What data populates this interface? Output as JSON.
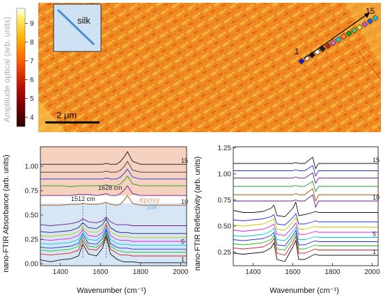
{
  "colorbar": {
    "label": "Amplitude  optical (arb. units)",
    "ticks": [
      "4",
      "5",
      "6",
      "7",
      "8",
      "9"
    ],
    "min": 3.5,
    "max": 9.8,
    "colors": [
      "#2a0000",
      "#7a0000",
      "#c01000",
      "#ff5a00",
      "#ffb200",
      "#fff06a",
      "#ffffff"
    ]
  },
  "map": {
    "inset_label": "silk",
    "scale_label": "2 μm",
    "point_start": "1",
    "point_end": "15",
    "point_colors": [
      "#1b1bd0",
      "#ffffff",
      "#111111",
      "#ffffff",
      "#222222",
      "#c02020",
      "#d070d0",
      "#30c0d0",
      "#ff8040",
      "#20a020",
      "#60c060",
      "#e0e050",
      "#d050d0",
      "#2060e0",
      "#30c0c0"
    ]
  },
  "chart_data": [
    {
      "type": "line",
      "title": "",
      "xlabel": "Wavenumber (cm⁻¹)",
      "ylabel": "nano-FTIR Absorbance (arb. units)",
      "xlim": [
        1300,
        2030
      ],
      "ylim": [
        -0.02,
        1.2
      ],
      "xticks": [
        1400,
        1600,
        1800,
        2000
      ],
      "yticks": [
        0.0,
        0.25,
        0.5,
        0.75,
        1.0
      ],
      "x": [
        1300,
        1350,
        1400,
        1450,
        1490,
        1512,
        1540,
        1580,
        1610,
        1628,
        1650,
        1680,
        1700,
        1720,
        1735,
        1760,
        1800,
        1900,
        2000,
        2030
      ],
      "regions": [
        {
          "name": "epoxy",
          "y_from": 0.7,
          "y_to": 1.2,
          "color": "#f5c9b5"
        },
        {
          "name": "silk",
          "y_from": -0.02,
          "y_to": 0.62,
          "color": "#cfe2f3"
        }
      ],
      "peak_labels": [
        "1512 cm",
        "1628 cm"
      ],
      "peak_positions": [
        1512,
        1628
      ],
      "series_end_labels": [
        "1",
        "5",
        "10",
        "15"
      ],
      "series": [
        {
          "color": "#111111",
          "values": [
            0.04,
            0.02,
            0.04,
            0.05,
            0.08,
            0.2,
            0.1,
            0.08,
            0.16,
            0.28,
            0.1,
            0.05,
            0.03,
            0.02,
            0.02,
            0.02,
            0.01,
            0.01,
            0.01,
            0.01
          ]
        },
        {
          "color": "#e02020",
          "values": [
            0.1,
            0.09,
            0.1,
            0.11,
            0.14,
            0.24,
            0.15,
            0.14,
            0.2,
            0.3,
            0.15,
            0.11,
            0.09,
            0.09,
            0.09,
            0.08,
            0.08,
            0.08,
            0.08,
            0.08
          ]
        },
        {
          "color": "#20c020",
          "values": [
            0.14,
            0.13,
            0.14,
            0.15,
            0.18,
            0.27,
            0.18,
            0.17,
            0.22,
            0.32,
            0.18,
            0.14,
            0.13,
            0.12,
            0.12,
            0.12,
            0.12,
            0.12,
            0.12,
            0.12
          ]
        },
        {
          "color": "#2030e0",
          "values": [
            0.17,
            0.16,
            0.17,
            0.18,
            0.21,
            0.3,
            0.21,
            0.2,
            0.26,
            0.35,
            0.21,
            0.17,
            0.16,
            0.16,
            0.16,
            0.15,
            0.15,
            0.15,
            0.15,
            0.15
          ]
        },
        {
          "color": "#00c8d8",
          "values": [
            0.21,
            0.2,
            0.21,
            0.22,
            0.25,
            0.32,
            0.25,
            0.24,
            0.29,
            0.37,
            0.25,
            0.21,
            0.2,
            0.2,
            0.2,
            0.19,
            0.19,
            0.19,
            0.19,
            0.19
          ]
        },
        {
          "color": "#e020e0",
          "values": [
            0.25,
            0.24,
            0.25,
            0.26,
            0.29,
            0.35,
            0.29,
            0.28,
            0.32,
            0.4,
            0.29,
            0.25,
            0.24,
            0.24,
            0.24,
            0.23,
            0.23,
            0.23,
            0.23,
            0.23
          ]
        },
        {
          "color": "#c8c800",
          "values": [
            0.29,
            0.28,
            0.29,
            0.3,
            0.33,
            0.38,
            0.33,
            0.32,
            0.36,
            0.42,
            0.33,
            0.29,
            0.28,
            0.28,
            0.28,
            0.27,
            0.27,
            0.27,
            0.27,
            0.27
          ]
        },
        {
          "color": "#1a1a80",
          "values": [
            0.33,
            0.32,
            0.33,
            0.34,
            0.37,
            0.42,
            0.37,
            0.36,
            0.4,
            0.46,
            0.37,
            0.33,
            0.32,
            0.32,
            0.32,
            0.31,
            0.31,
            0.31,
            0.31,
            0.31
          ]
        },
        {
          "color": "#6a1a8a",
          "values": [
            0.4,
            0.39,
            0.4,
            0.41,
            0.43,
            0.46,
            0.43,
            0.42,
            0.44,
            0.48,
            0.43,
            0.4,
            0.4,
            0.4,
            0.4,
            0.39,
            0.39,
            0.39,
            0.39,
            0.39
          ]
        },
        {
          "color": "#a05010",
          "values": [
            0.6,
            0.6,
            0.6,
            0.61,
            0.61,
            0.62,
            0.61,
            0.61,
            0.62,
            0.63,
            0.61,
            0.6,
            0.61,
            0.66,
            0.7,
            0.62,
            0.6,
            0.6,
            0.6,
            0.6
          ]
        },
        {
          "color": "#6a1a8a",
          "values": [
            0.7,
            0.7,
            0.7,
            0.7,
            0.71,
            0.71,
            0.71,
            0.7,
            0.71,
            0.72,
            0.7,
            0.7,
            0.72,
            0.76,
            0.8,
            0.72,
            0.7,
            0.7,
            0.7,
            0.7
          ]
        },
        {
          "color": "#20a020",
          "values": [
            0.8,
            0.8,
            0.8,
            0.79,
            0.8,
            0.8,
            0.8,
            0.8,
            0.8,
            0.81,
            0.8,
            0.8,
            0.82,
            0.86,
            0.9,
            0.82,
            0.8,
            0.8,
            0.8,
            0.8
          ]
        },
        {
          "color": "#2030e0",
          "values": [
            0.87,
            0.87,
            0.87,
            0.87,
            0.87,
            0.87,
            0.87,
            0.87,
            0.87,
            0.88,
            0.87,
            0.87,
            0.89,
            0.93,
            0.97,
            0.89,
            0.87,
            0.87,
            0.87,
            0.87
          ]
        },
        {
          "color": "#3a3a3a",
          "values": [
            0.94,
            0.94,
            0.94,
            0.94,
            0.94,
            0.94,
            0.94,
            0.94,
            0.94,
            0.95,
            0.94,
            0.94,
            0.96,
            1.0,
            1.05,
            0.96,
            0.94,
            0.94,
            0.94,
            0.94
          ]
        },
        {
          "color": "#111111",
          "values": [
            1.02,
            1.02,
            1.02,
            1.02,
            1.02,
            1.02,
            1.02,
            1.02,
            1.02,
            1.03,
            1.02,
            1.02,
            1.05,
            1.1,
            1.15,
            1.05,
            1.02,
            1.02,
            1.02,
            1.02
          ]
        }
      ]
    },
    {
      "type": "line",
      "title": "",
      "xlabel": "Wavenumber (cm⁻¹)",
      "ylabel": "nano-FTIR Reflectivity (arb. units)",
      "xlim": [
        1300,
        2030
      ],
      "ylim": [
        0.12,
        1.26
      ],
      "xticks": [
        1400,
        1600,
        1800,
        2000
      ],
      "yticks": [
        0.25,
        0.5,
        0.75,
        1.0,
        1.25
      ],
      "x": [
        1300,
        1350,
        1400,
        1450,
        1490,
        1505,
        1520,
        1560,
        1600,
        1615,
        1630,
        1660,
        1700,
        1715,
        1730,
        1760,
        1800,
        1900,
        2000,
        2030
      ],
      "series_end_labels": [
        "1",
        "5",
        "10",
        "15"
      ],
      "series": [
        {
          "color": "#111111",
          "values": [
            0.24,
            0.23,
            0.24,
            0.25,
            0.29,
            0.34,
            0.18,
            0.16,
            0.3,
            0.36,
            0.18,
            0.18,
            0.22,
            0.23,
            0.22,
            0.22,
            0.22,
            0.22,
            0.22,
            0.22
          ]
        },
        {
          "color": "#e02020",
          "values": [
            0.29,
            0.28,
            0.29,
            0.3,
            0.34,
            0.38,
            0.24,
            0.22,
            0.34,
            0.4,
            0.24,
            0.24,
            0.27,
            0.28,
            0.27,
            0.27,
            0.27,
            0.27,
            0.27,
            0.27
          ]
        },
        {
          "color": "#20c020",
          "values": [
            0.33,
            0.32,
            0.33,
            0.34,
            0.37,
            0.41,
            0.28,
            0.27,
            0.38,
            0.43,
            0.28,
            0.28,
            0.31,
            0.32,
            0.31,
            0.31,
            0.31,
            0.31,
            0.31,
            0.31
          ]
        },
        {
          "color": "#2030e0",
          "values": [
            0.37,
            0.36,
            0.37,
            0.38,
            0.41,
            0.44,
            0.32,
            0.31,
            0.41,
            0.46,
            0.32,
            0.32,
            0.35,
            0.36,
            0.35,
            0.35,
            0.35,
            0.35,
            0.35,
            0.35
          ]
        },
        {
          "color": "#00c8d8",
          "values": [
            0.41,
            0.4,
            0.41,
            0.42,
            0.45,
            0.48,
            0.37,
            0.36,
            0.45,
            0.49,
            0.37,
            0.37,
            0.39,
            0.4,
            0.39,
            0.39,
            0.39,
            0.39,
            0.39,
            0.39
          ]
        },
        {
          "color": "#e020e0",
          "values": [
            0.46,
            0.45,
            0.46,
            0.47,
            0.5,
            0.52,
            0.42,
            0.41,
            0.49,
            0.53,
            0.42,
            0.42,
            0.44,
            0.45,
            0.44,
            0.44,
            0.44,
            0.44,
            0.44,
            0.44
          ]
        },
        {
          "color": "#c8c800",
          "values": [
            0.51,
            0.5,
            0.51,
            0.52,
            0.55,
            0.57,
            0.47,
            0.46,
            0.54,
            0.58,
            0.47,
            0.47,
            0.49,
            0.5,
            0.49,
            0.49,
            0.49,
            0.49,
            0.49,
            0.49
          ]
        },
        {
          "color": "#2030e0",
          "values": [
            0.56,
            0.55,
            0.56,
            0.57,
            0.59,
            0.61,
            0.52,
            0.51,
            0.58,
            0.62,
            0.52,
            0.52,
            0.54,
            0.55,
            0.54,
            0.54,
            0.54,
            0.54,
            0.54,
            0.54
          ]
        },
        {
          "color": "#111111",
          "values": [
            0.65,
            0.63,
            0.63,
            0.64,
            0.67,
            0.7,
            0.6,
            0.59,
            0.67,
            0.73,
            0.6,
            0.61,
            0.63,
            0.64,
            0.63,
            0.63,
            0.63,
            0.63,
            0.63,
            0.63
          ]
        },
        {
          "color": "#6a1a8a",
          "values": [
            0.74,
            0.74,
            0.74,
            0.74,
            0.74,
            0.74,
            0.74,
            0.74,
            0.74,
            0.75,
            0.74,
            0.74,
            0.8,
            0.68,
            0.74,
            0.74,
            0.74,
            0.74,
            0.74,
            0.74
          ]
        },
        {
          "color": "#a05010",
          "values": [
            0.8,
            0.8,
            0.8,
            0.8,
            0.8,
            0.8,
            0.8,
            0.8,
            0.8,
            0.81,
            0.8,
            0.8,
            0.86,
            0.74,
            0.8,
            0.8,
            0.8,
            0.8,
            0.8,
            0.8
          ]
        },
        {
          "color": "#20a020",
          "values": [
            0.88,
            0.88,
            0.88,
            0.88,
            0.88,
            0.88,
            0.88,
            0.88,
            0.88,
            0.89,
            0.88,
            0.88,
            0.93,
            0.83,
            0.88,
            0.88,
            0.88,
            0.88,
            0.88,
            0.88
          ]
        },
        {
          "color": "#6a1a8a",
          "values": [
            0.96,
            0.96,
            0.96,
            0.96,
            0.96,
            0.96,
            0.96,
            0.96,
            0.96,
            0.97,
            0.96,
            0.96,
            1.01,
            0.91,
            0.96,
            0.96,
            0.96,
            0.96,
            0.96,
            0.96
          ]
        },
        {
          "color": "#2030e0",
          "values": [
            1.03,
            1.03,
            1.03,
            1.03,
            1.03,
            1.03,
            1.03,
            1.03,
            1.03,
            1.04,
            1.03,
            1.03,
            1.08,
            0.98,
            1.03,
            1.03,
            1.03,
            1.03,
            1.03,
            1.03
          ]
        },
        {
          "color": "#111111",
          "values": [
            1.1,
            1.1,
            1.1,
            1.1,
            1.1,
            1.1,
            1.1,
            1.1,
            1.1,
            1.11,
            1.1,
            1.1,
            1.16,
            1.05,
            1.1,
            1.1,
            1.1,
            1.1,
            1.1,
            1.1
          ]
        }
      ]
    }
  ]
}
